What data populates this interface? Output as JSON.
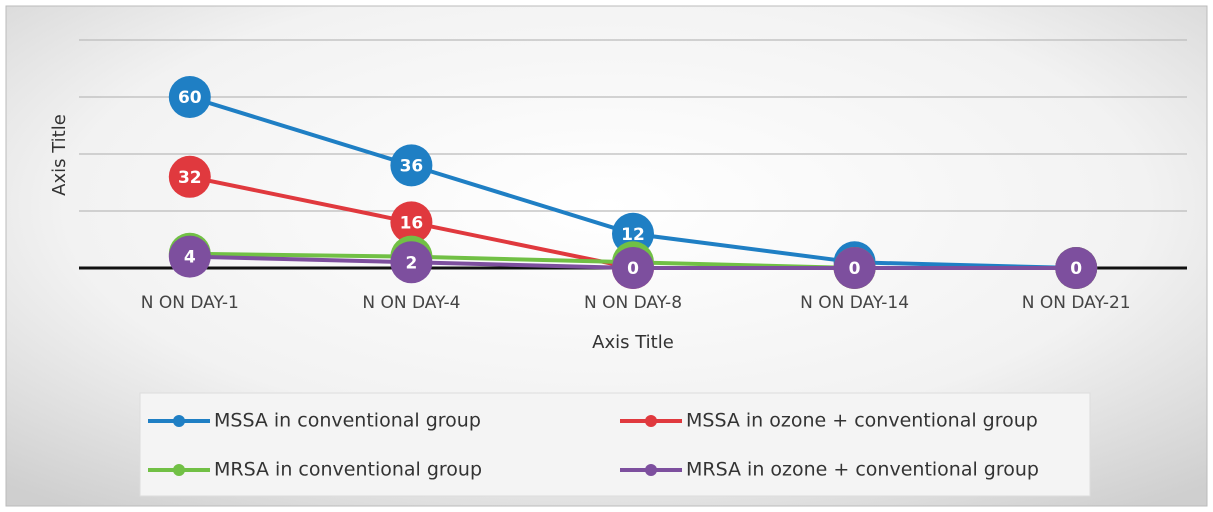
{
  "chart_data": {
    "type": "line",
    "x_label": "Axis Title",
    "y_label": "Axis Title",
    "categories": [
      "N ON DAY-1",
      "N ON DAY-4",
      "N ON DAY-8",
      "N ON DAY-14",
      "N ON DAY-21"
    ],
    "series": [
      {
        "name": "MSSA in conventional  group",
        "color": "#1f7fc4",
        "values": [
          60,
          36,
          12,
          2,
          0
        ]
      },
      {
        "name": "MSSA in ozone + conventional  group",
        "color": "#e0393e",
        "values": [
          32,
          16,
          0,
          0,
          0
        ]
      },
      {
        "name": "MRSA in conventional group",
        "color": "#71c045",
        "values": [
          5,
          4,
          2,
          0,
          0
        ]
      },
      {
        "name": "MRSA in ozone + conventional  group",
        "color": "#7d4f9e",
        "values": [
          4,
          2,
          0,
          0,
          0
        ]
      }
    ],
    "ylim": [
      0,
      80
    ],
    "yticks": [
      0,
      20,
      40,
      60,
      80
    ],
    "grid": true
  }
}
